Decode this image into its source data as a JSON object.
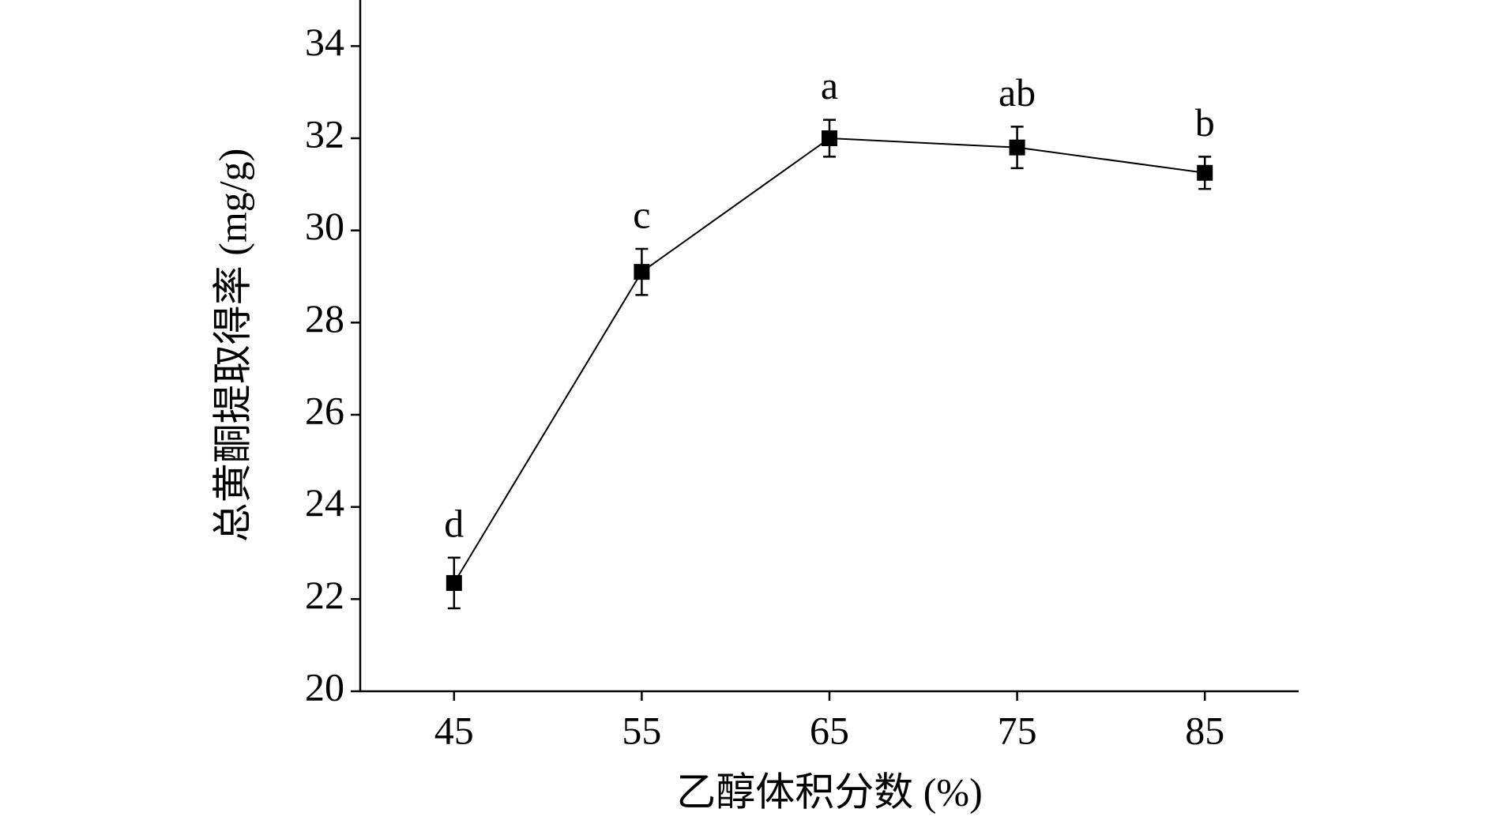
{
  "chart_data": {
    "type": "line",
    "x_label": "乙醇体积分数 (%)",
    "y_label": "总黄酮提取得率 (mg/g)",
    "x": [
      45,
      55,
      65,
      75,
      85
    ],
    "series": [
      {
        "color": "#000000",
        "values": [
          22.35,
          29.1,
          32.0,
          31.8,
          31.25
        ],
        "errors": [
          0.55,
          0.5,
          0.4,
          0.45,
          0.35
        ],
        "annotations": [
          "d",
          "c",
          "a",
          "ab",
          "b"
        ]
      }
    ],
    "xlim": [
      40,
      90
    ],
    "xticks": [
      45,
      55,
      65,
      75,
      85
    ],
    "ylim": [
      20,
      35
    ],
    "yticks": [
      20,
      22,
      24,
      26,
      28,
      30,
      32,
      34
    ],
    "grid": false
  }
}
